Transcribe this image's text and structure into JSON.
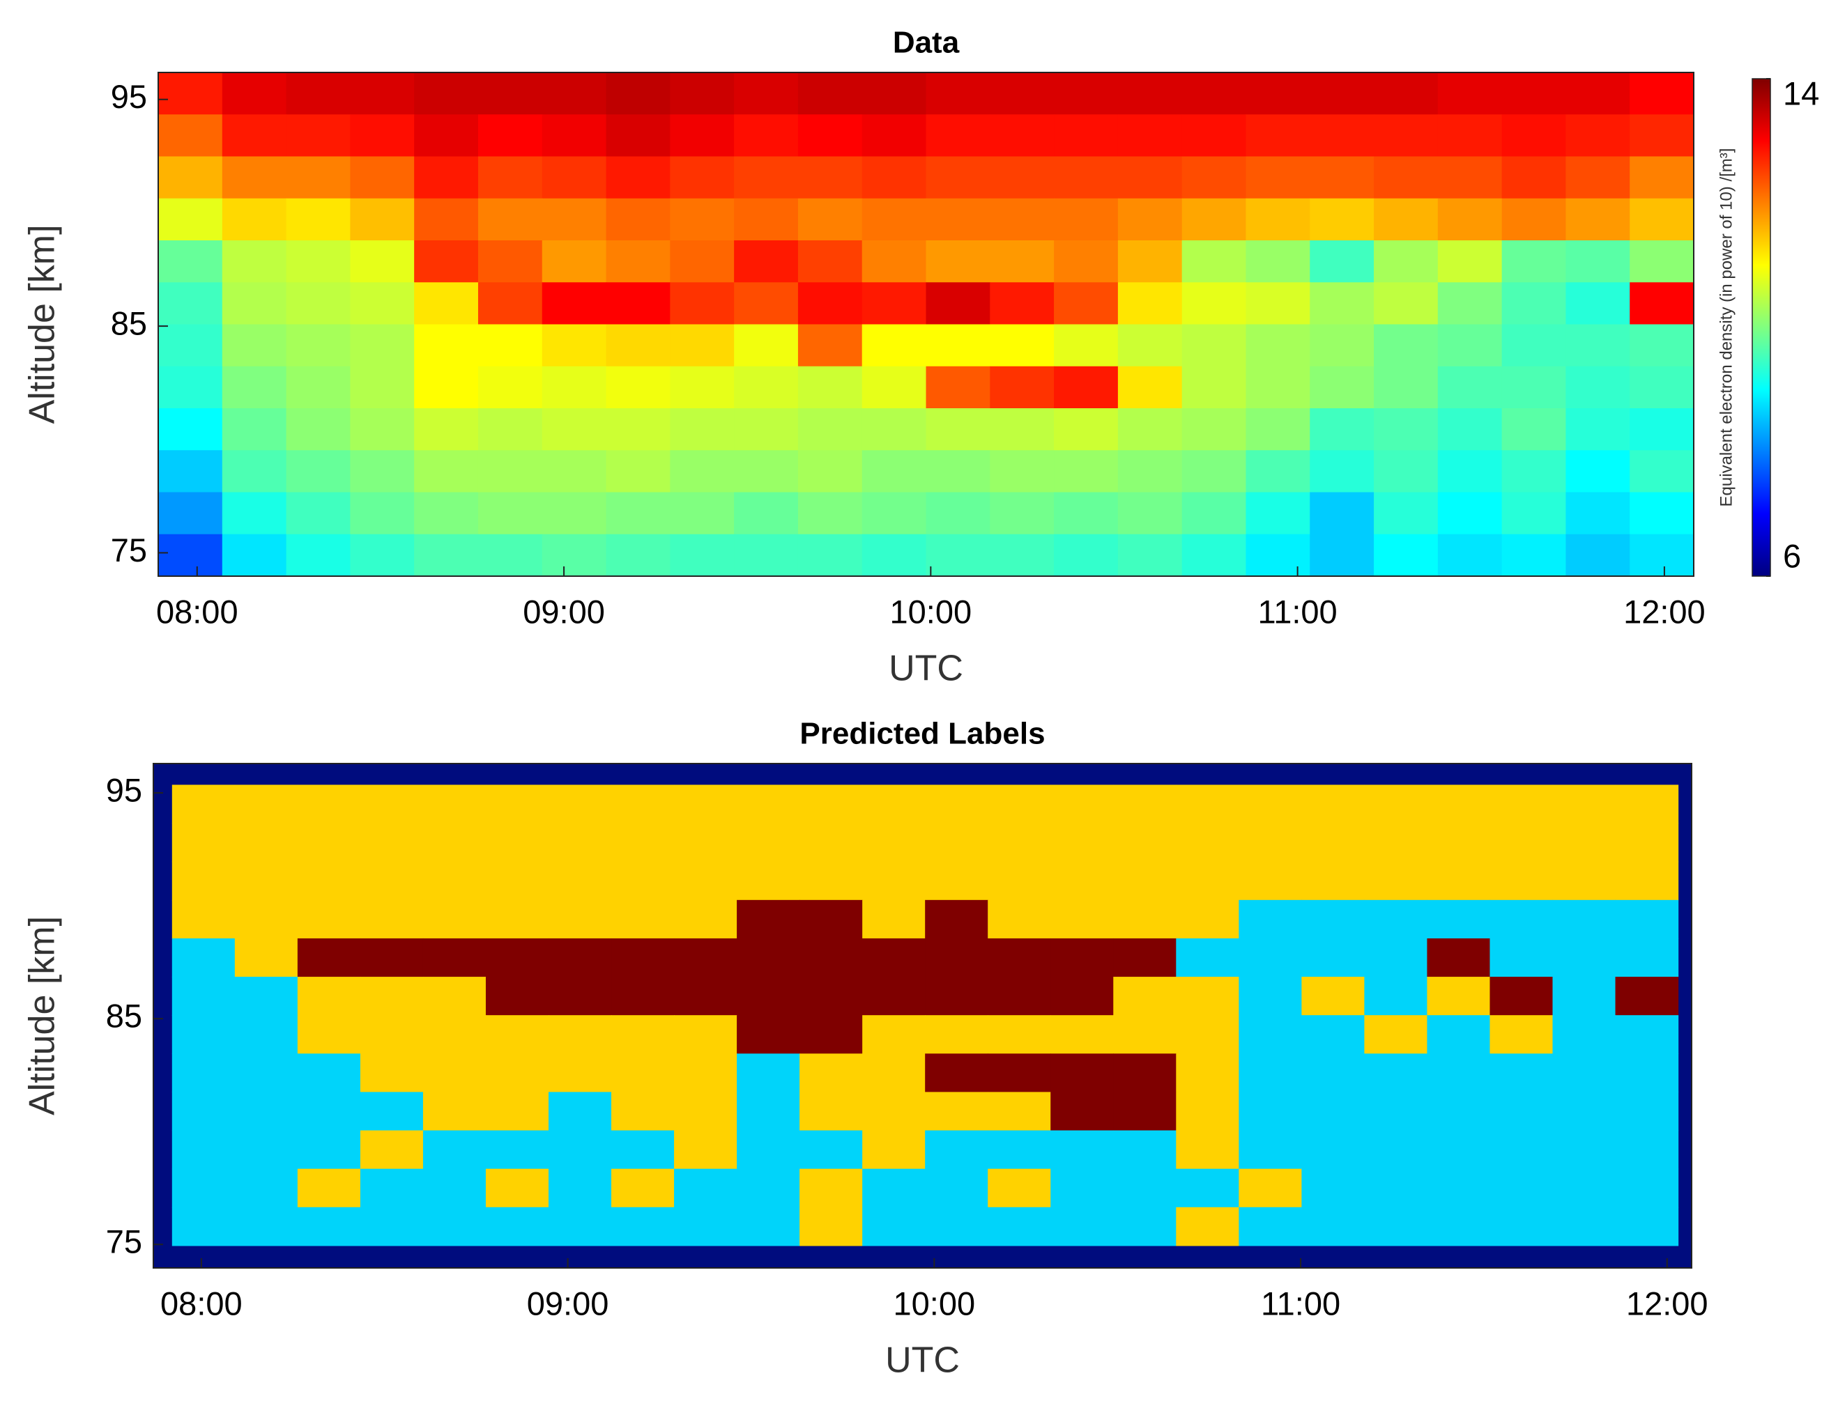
{
  "chart_data": [
    {
      "type": "heatmap",
      "title": "Data",
      "xlabel": "UTC",
      "ylabel": "Altitude [km]",
      "xlim": [
        7.894,
        12.08
      ],
      "ylim": [
        73.97,
        96.19
      ],
      "xticks": [
        {
          "value": 8,
          "label": "08:00"
        },
        {
          "value": 9,
          "label": "09:00"
        },
        {
          "value": 10,
          "label": "10:00"
        },
        {
          "value": 11,
          "label": "11:00"
        },
        {
          "value": 12,
          "label": "12:00"
        }
      ],
      "yticks": [
        75,
        85,
        95
      ],
      "colormap": "jet",
      "clim": [
        6,
        14
      ],
      "cticks": [
        6,
        14
      ],
      "colorbar_label": "Equivalent electron density (in power of 10) /[m³]",
      "z": [
        [
          12.8,
          13.2,
          13.3,
          13.3,
          13.4,
          13.4,
          13.4,
          13.5,
          13.4,
          13.3,
          13.4,
          13.4,
          13.3,
          13.3,
          13.3,
          13.3,
          13.3,
          13.3,
          13.3,
          13.3,
          13.2,
          13.2,
          13.2,
          13.0
        ],
        [
          12.2,
          12.8,
          12.8,
          12.9,
          13.2,
          13.0,
          13.1,
          13.3,
          13.1,
          12.9,
          13.0,
          13.1,
          12.9,
          12.9,
          12.9,
          12.9,
          12.9,
          12.8,
          12.8,
          12.8,
          12.8,
          12.9,
          12.8,
          12.7
        ],
        [
          11.6,
          12.0,
          12.0,
          12.2,
          12.8,
          12.5,
          12.6,
          12.8,
          12.6,
          12.5,
          12.5,
          12.6,
          12.5,
          12.5,
          12.5,
          12.5,
          12.4,
          12.3,
          12.3,
          12.4,
          12.4,
          12.6,
          12.4,
          12.0
        ],
        [
          10.8,
          11.3,
          11.2,
          11.5,
          12.3,
          12.0,
          12.0,
          12.2,
          12.1,
          12.2,
          12.0,
          12.1,
          12.1,
          12.1,
          12.1,
          11.9,
          11.7,
          11.5,
          11.4,
          11.6,
          11.8,
          12.0,
          11.8,
          11.5
        ],
        [
          9.8,
          10.5,
          10.6,
          10.8,
          12.6,
          12.3,
          11.8,
          12.0,
          12.2,
          12.8,
          12.5,
          12.0,
          11.8,
          11.8,
          12.0,
          11.6,
          10.4,
          10.2,
          9.5,
          10.3,
          10.6,
          9.8,
          9.7,
          10.1
        ],
        [
          9.5,
          10.4,
          10.5,
          10.6,
          11.2,
          12.5,
          13.0,
          13.0,
          12.6,
          12.4,
          12.9,
          12.8,
          13.3,
          12.8,
          12.4,
          11.2,
          10.8,
          10.7,
          10.3,
          10.5,
          10.0,
          9.6,
          9.3,
          13.0
        ],
        [
          9.4,
          10.2,
          10.3,
          10.4,
          11.0,
          11.0,
          11.2,
          11.3,
          11.3,
          10.9,
          12.2,
          11.0,
          11.0,
          11.0,
          10.8,
          10.6,
          10.5,
          10.3,
          10.2,
          9.9,
          9.8,
          9.5,
          9.5,
          9.6
        ],
        [
          9.3,
          10.0,
          10.2,
          10.4,
          11.0,
          10.9,
          10.8,
          10.9,
          10.8,
          10.7,
          10.6,
          10.8,
          12.3,
          12.6,
          12.8,
          11.2,
          10.5,
          10.3,
          10.1,
          9.9,
          9.6,
          9.6,
          9.4,
          9.5
        ],
        [
          9.0,
          9.8,
          10.1,
          10.3,
          10.6,
          10.5,
          10.6,
          10.6,
          10.5,
          10.5,
          10.4,
          10.4,
          10.5,
          10.5,
          10.6,
          10.4,
          10.3,
          10.1,
          9.5,
          9.6,
          9.4,
          9.7,
          9.3,
          9.2
        ],
        [
          8.6,
          9.6,
          9.8,
          10.0,
          10.3,
          10.3,
          10.3,
          10.4,
          10.2,
          10.2,
          10.3,
          10.1,
          10.1,
          10.2,
          10.2,
          10.1,
          10.0,
          9.6,
          9.3,
          9.5,
          9.2,
          9.4,
          9.0,
          9.4
        ],
        [
          8.2,
          9.2,
          9.5,
          9.8,
          10.0,
          10.1,
          10.1,
          10.0,
          10.0,
          9.8,
          10.0,
          9.9,
          9.8,
          9.9,
          9.8,
          9.9,
          9.7,
          9.2,
          8.6,
          9.3,
          9.0,
          9.3,
          8.8,
          9.0
        ],
        [
          7.6,
          8.8,
          9.2,
          9.4,
          9.6,
          9.6,
          9.7,
          9.6,
          9.5,
          9.5,
          9.5,
          9.4,
          9.5,
          9.5,
          9.4,
          9.5,
          9.3,
          8.9,
          8.6,
          9.0,
          8.8,
          8.9,
          8.6,
          8.8
        ]
      ]
    },
    {
      "type": "heatmap",
      "title": "Predicted Labels",
      "xlabel": "UTC",
      "ylabel": "Altitude [km]",
      "xlim": [
        7.869,
        12.067
      ],
      "ylim": [
        73.96,
        96.3
      ],
      "cells_xlim": [
        7.92,
        12.03
      ],
      "cells_ylim": [
        74.95,
        95.36
      ],
      "xticks": [
        {
          "value": 8,
          "label": "08:00"
        },
        {
          "value": 9,
          "label": "09:00"
        },
        {
          "value": 10,
          "label": "10:00"
        },
        {
          "value": 11,
          "label": "11:00"
        },
        {
          "value": 12,
          "label": "12:00"
        }
      ],
      "yticks": [
        75,
        85,
        95
      ],
      "background": "#000c7e",
      "colors": [
        "#ffd200",
        "#7f0000",
        "#00d4fa"
      ],
      "z": [
        [
          0,
          0,
          0,
          0,
          0,
          0,
          0,
          0,
          0,
          0,
          0,
          0,
          0,
          0,
          0,
          0,
          0,
          0,
          0,
          0,
          0,
          0,
          0,
          0
        ],
        [
          0,
          0,
          0,
          0,
          0,
          0,
          0,
          0,
          0,
          0,
          0,
          0,
          0,
          0,
          0,
          0,
          0,
          0,
          0,
          0,
          0,
          0,
          0,
          0
        ],
        [
          0,
          0,
          0,
          0,
          0,
          0,
          0,
          0,
          0,
          0,
          0,
          0,
          0,
          0,
          0,
          0,
          0,
          0,
          0,
          0,
          0,
          0,
          0,
          0
        ],
        [
          0,
          0,
          0,
          0,
          0,
          0,
          0,
          0,
          0,
          1,
          1,
          0,
          1,
          0,
          0,
          0,
          0,
          2,
          2,
          2,
          2,
          2,
          2,
          2
        ],
        [
          2,
          0,
          1,
          1,
          1,
          1,
          1,
          1,
          1,
          1,
          1,
          1,
          1,
          1,
          1,
          1,
          2,
          2,
          2,
          2,
          1,
          2,
          2,
          2
        ],
        [
          2,
          2,
          0,
          0,
          0,
          1,
          1,
          1,
          1,
          1,
          1,
          1,
          1,
          1,
          1,
          0,
          0,
          2,
          0,
          2,
          0,
          1,
          2,
          1
        ],
        [
          2,
          2,
          0,
          0,
          0,
          0,
          0,
          0,
          0,
          1,
          1,
          0,
          0,
          0,
          0,
          0,
          0,
          2,
          2,
          0,
          2,
          0,
          2,
          2
        ],
        [
          2,
          2,
          2,
          0,
          0,
          0,
          0,
          0,
          0,
          2,
          0,
          0,
          1,
          1,
          1,
          1,
          0,
          2,
          2,
          2,
          2,
          2,
          2,
          2
        ],
        [
          2,
          2,
          2,
          2,
          0,
          0,
          2,
          0,
          0,
          2,
          0,
          0,
          0,
          0,
          1,
          1,
          0,
          2,
          2,
          2,
          2,
          2,
          2,
          2
        ],
        [
          2,
          2,
          2,
          0,
          2,
          2,
          2,
          2,
          0,
          2,
          2,
          0,
          2,
          2,
          2,
          2,
          0,
          2,
          2,
          2,
          2,
          2,
          2,
          2
        ],
        [
          2,
          2,
          0,
          2,
          2,
          0,
          2,
          0,
          2,
          2,
          0,
          2,
          2,
          0,
          2,
          2,
          2,
          0,
          2,
          2,
          2,
          2,
          2,
          2
        ],
        [
          2,
          2,
          2,
          2,
          2,
          2,
          2,
          2,
          2,
          2,
          0,
          2,
          2,
          2,
          2,
          2,
          0,
          2,
          2,
          2,
          2,
          2,
          2,
          2
        ]
      ]
    }
  ]
}
